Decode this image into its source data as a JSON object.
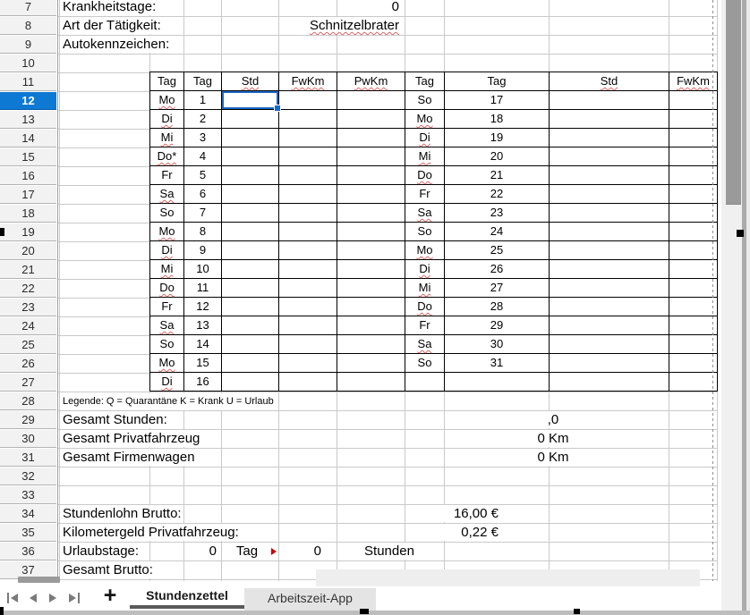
{
  "spreadsheet": {
    "row_numbers": [
      7,
      8,
      9,
      10,
      11,
      12,
      13,
      14,
      15,
      16,
      17,
      18,
      19,
      20,
      21,
      22,
      23,
      24,
      25,
      26,
      27,
      28,
      29,
      30,
      31,
      32,
      33,
      34,
      35,
      36,
      37
    ],
    "selected_row": 12,
    "selected_cell": {
      "row": 12,
      "column_header": "Std"
    },
    "top_fields": [
      {
        "row": 7,
        "label": "Krankheitstage:",
        "value": "0",
        "misspelled": false
      },
      {
        "row": 8,
        "label": "Art der Tätigkeit:",
        "value": "Schnitzelbrater",
        "misspelled": true
      },
      {
        "row": 9,
        "label": "Autokennzeichen:",
        "value": "",
        "misspelled": false
      }
    ],
    "day_table": {
      "headers": [
        "Tag",
        "Tag",
        "Std",
        "FwKm",
        "PwKm",
        "Tag",
        "Tag",
        "Std",
        "FwKm"
      ],
      "misspelled_headers": [
        "Std",
        "FwKm",
        "PwKm"
      ],
      "misspelled_day_names": [
        "Mo",
        "Di",
        "Mi",
        "Do",
        "Do*",
        "Sa"
      ],
      "left_days": [
        [
          "Mo",
          "1"
        ],
        [
          "Di",
          "2"
        ],
        [
          "Mi",
          "3"
        ],
        [
          "Do*",
          "4"
        ],
        [
          "Fr",
          "5"
        ],
        [
          "Sa",
          "6"
        ],
        [
          "So",
          "7"
        ],
        [
          "Mo",
          "8"
        ],
        [
          "Di",
          "9"
        ],
        [
          "Mi",
          "10"
        ],
        [
          "Do",
          "11"
        ],
        [
          "Fr",
          "12"
        ],
        [
          "Sa",
          "13"
        ],
        [
          "So",
          "14"
        ],
        [
          "Mo",
          "15"
        ],
        [
          "Di",
          "16"
        ]
      ],
      "right_days": [
        [
          "So",
          "17"
        ],
        [
          "Mo",
          "18"
        ],
        [
          "Di",
          "19"
        ],
        [
          "Mi",
          "20"
        ],
        [
          "Do",
          "21"
        ],
        [
          "Fr",
          "22"
        ],
        [
          "Sa",
          "23"
        ],
        [
          "So",
          "24"
        ],
        [
          "Mo",
          "25"
        ],
        [
          "Di",
          "26"
        ],
        [
          "Mi",
          "27"
        ],
        [
          "Do",
          "28"
        ],
        [
          "Fr",
          "29"
        ],
        [
          "Sa",
          "30"
        ],
        [
          "So",
          "31"
        ],
        [
          "",
          ""
        ]
      ]
    },
    "legend": "Legende: Q = Quarantäne K = Krank U = Urlaub",
    "summary_rows": [
      {
        "row": 29,
        "label": "Gesamt Stunden:",
        "value": ",0"
      },
      {
        "row": 30,
        "label": "Gesamt Privatfahrzeug",
        "value": "0 Km"
      },
      {
        "row": 31,
        "label": "Gesamt Firmenwagen",
        "value": "0 Km"
      },
      {
        "row": 34,
        "label": "Stundenlohn Brutto:",
        "value": "16,00 €"
      },
      {
        "row": 35,
        "label": "Kilometergeld Privatfahrzeug:",
        "value": "0,22 €"
      },
      {
        "row": 37,
        "label": "Gesamt Brutto:",
        "value": ""
      }
    ],
    "vacation_row": {
      "row": 36,
      "label": "Urlaubstage:",
      "days_value": "0",
      "days_unit": "Tag",
      "days_unit_truncated": true,
      "hours_value": "0",
      "hours_unit": "Stunden"
    }
  },
  "sheet_bar": {
    "add_sheet_label": "+",
    "tabs": [
      {
        "label": "Stundenzettel",
        "active": true
      },
      {
        "label": "Arbeitszeit-App",
        "active": false
      }
    ]
  },
  "colors": {
    "selected_row_bg": "#0d79d2",
    "selection_border": "#1a66c6",
    "spellcheck_squiggle": "#e06666",
    "overflow_arrow": "#cc0000",
    "grid_line": "#c9c9c9",
    "table_border": "#000000",
    "active_tab_underline": "#5a5a5a"
  }
}
